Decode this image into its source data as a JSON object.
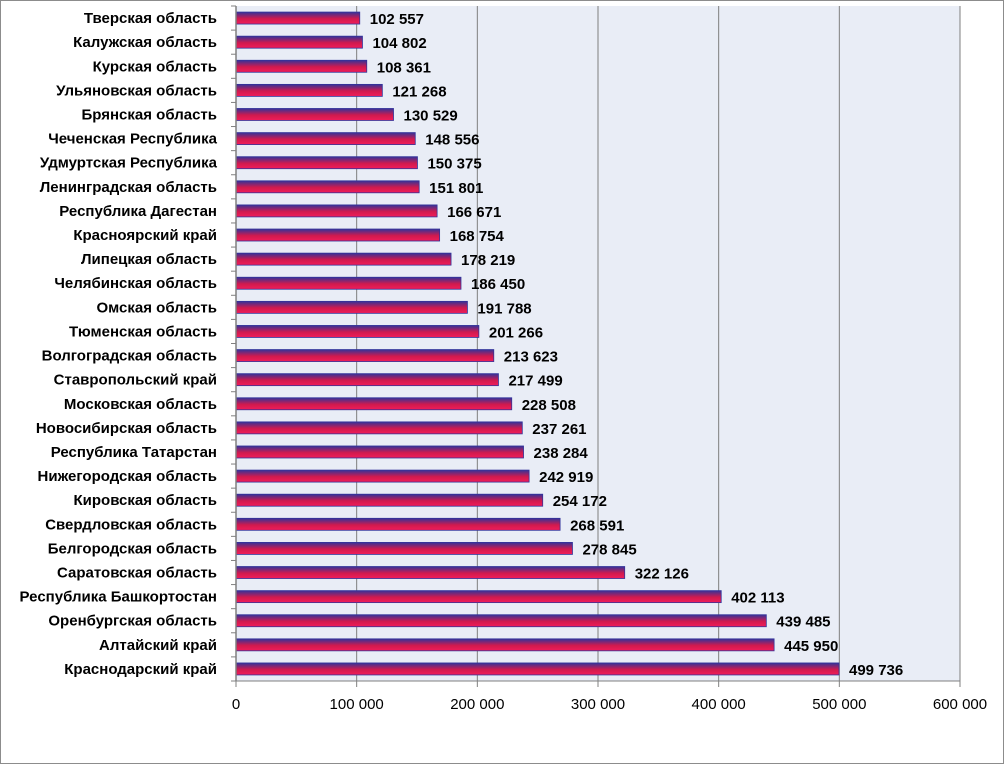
{
  "colors": {
    "plot_background": "#e9edf6",
    "gridline": "#7f7f7f",
    "axis": "#808080",
    "bar_top": "#33339a",
    "bar_mid": "#d01a4e",
    "bar_bottom": "#f01d5a"
  },
  "chart_data": {
    "type": "bar",
    "orientation": "horizontal",
    "title": "",
    "xlabel": "",
    "ylabel": "",
    "xlim": [
      0,
      600000
    ],
    "x_ticks": [
      0,
      100000,
      200000,
      300000,
      400000,
      500000,
      600000
    ],
    "x_tick_labels": [
      "0",
      "100 000",
      "200 000",
      "300 000",
      "400 000",
      "500 000",
      "600 000"
    ],
    "grid": "vertical major gridlines",
    "legend": "none",
    "categories": [
      "Тверская область",
      "Калужская область",
      "Курская область",
      "Ульяновская область",
      "Брянская область",
      "Чеченская Республика",
      "Удмуртская Республика",
      "Ленинградская область",
      "Республика Дагестан",
      "Красноярский край",
      "Липецкая область",
      "Челябинская область",
      "Омская область",
      "Тюменская область",
      "Волгоградская область",
      "Ставропольский край",
      "Московская область",
      "Новосибирская область",
      "Республика Татарстан",
      "Нижегородская область",
      "Кировская область",
      "Свердловская область",
      "Белгородская область",
      "Саратовская область",
      "Республика Башкортостан",
      "Оренбургская область",
      "Алтайский край",
      "Краснодарский край"
    ],
    "values": [
      102557,
      104802,
      108361,
      121268,
      130529,
      148556,
      150375,
      151801,
      166671,
      168754,
      178219,
      186450,
      191788,
      201266,
      213623,
      217499,
      228508,
      237261,
      238284,
      242919,
      254172,
      268591,
      278845,
      322126,
      402113,
      439485,
      445950,
      499736
    ],
    "value_labels": [
      "102 557",
      "104 802",
      "108 361",
      "121 268",
      "130 529",
      "148 556",
      "150 375",
      "151 801",
      "166 671",
      "168 754",
      "178 219",
      "186 450",
      "191 788",
      "201 266",
      "213 623",
      "217 499",
      "228 508",
      "237 261",
      "238 284",
      "242 919",
      "254 172",
      "268 591",
      "278 845",
      "322 126",
      "402 113",
      "439 485",
      "445 950",
      "499 736"
    ]
  }
}
